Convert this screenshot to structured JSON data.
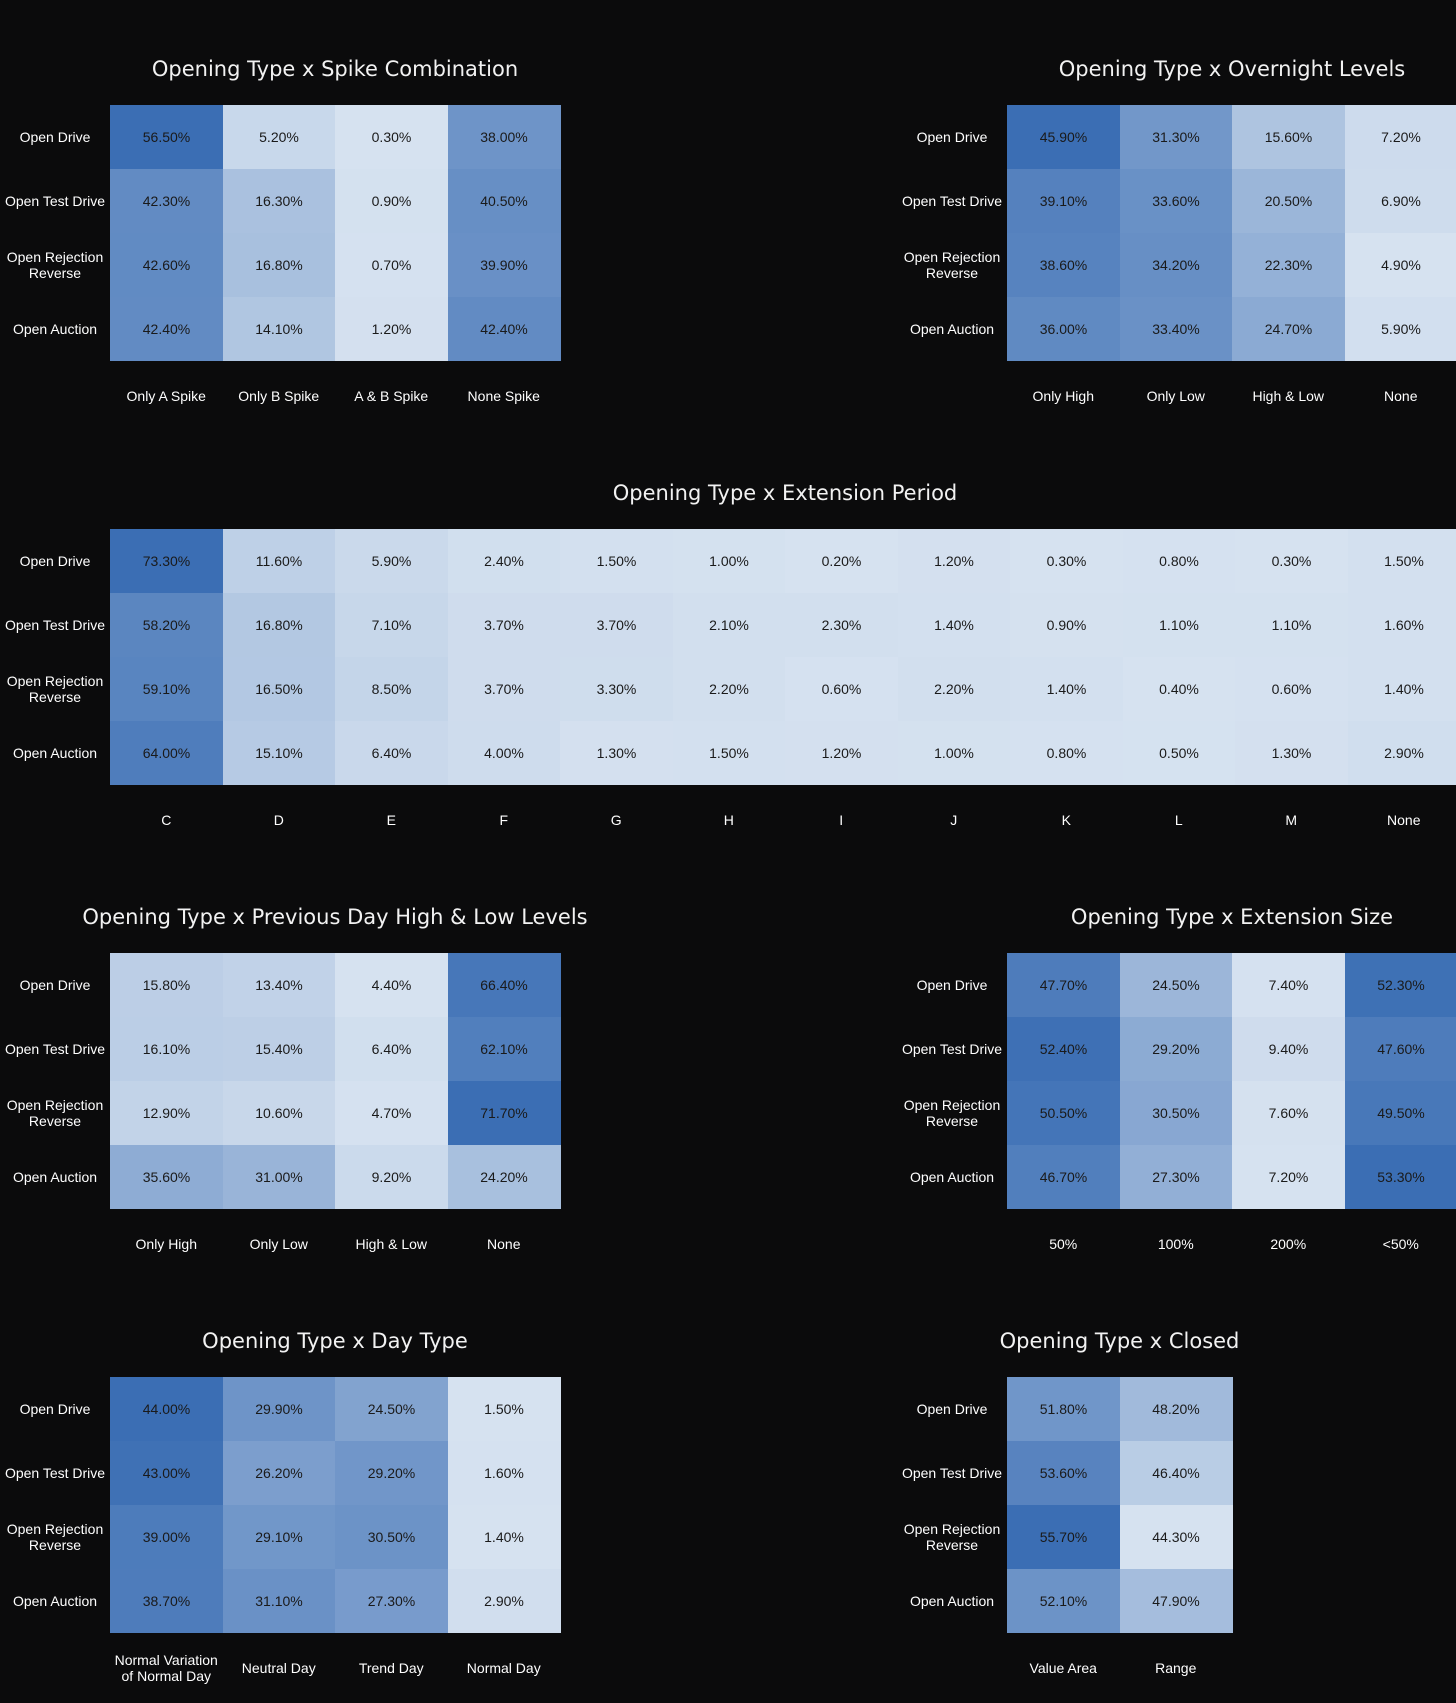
{
  "chart_data": [
    {
      "type": "heatmap",
      "title": "Opening Type x Spike Combination",
      "rows": [
        "Open Drive",
        "Open Test Drive",
        "Open Rejection Reverse",
        "Open Auction"
      ],
      "columns": [
        "Only A Spike",
        "Only B Spike",
        "A & B Spike",
        "None Spike"
      ],
      "values": [
        [
          56.5,
          5.2,
          0.3,
          38.0
        ],
        [
          42.3,
          16.3,
          0.9,
          40.5
        ],
        [
          42.6,
          16.8,
          0.7,
          39.9
        ],
        [
          42.4,
          14.1,
          1.2,
          42.4
        ]
      ],
      "labels": [
        [
          "56.50%",
          "5.20%",
          "0.30%",
          "38.00%"
        ],
        [
          "42.30%",
          "16.30%",
          "0.90%",
          "40.50%"
        ],
        [
          "42.60%",
          "16.80%",
          "0.70%",
          "39.90%"
        ],
        [
          "42.40%",
          "14.10%",
          "1.20%",
          "42.40%"
        ]
      ]
    },
    {
      "type": "heatmap",
      "title": "Opening Type x Overnight Levels",
      "rows": [
        "Open Drive",
        "Open Test Drive",
        "Open Rejection Reverse",
        "Open Auction"
      ],
      "columns": [
        "Only High",
        "Only Low",
        "High & Low",
        "None"
      ],
      "values": [
        [
          45.9,
          31.3,
          15.6,
          7.2
        ],
        [
          39.1,
          33.6,
          20.5,
          6.9
        ],
        [
          38.6,
          34.2,
          22.3,
          4.9
        ],
        [
          36.0,
          33.4,
          24.7,
          5.9
        ]
      ],
      "labels": [
        [
          "45.90%",
          "31.30%",
          "15.60%",
          "7.20%"
        ],
        [
          "39.10%",
          "33.60%",
          "20.50%",
          "6.90%"
        ],
        [
          "38.60%",
          "34.20%",
          "22.30%",
          "4.90%"
        ],
        [
          "36.00%",
          "33.40%",
          "24.70%",
          "5.90%"
        ]
      ]
    },
    {
      "type": "heatmap",
      "title": "Opening Type x Extension Period",
      "rows": [
        "Open Drive",
        "Open Test Drive",
        "Open Rejection Reverse",
        "Open Auction"
      ],
      "columns": [
        "C",
        "D",
        "E",
        "F",
        "G",
        "H",
        "I",
        "J",
        "K",
        "L",
        "M",
        "None"
      ],
      "values": [
        [
          73.3,
          11.6,
          5.9,
          2.4,
          1.5,
          1.0,
          0.2,
          1.2,
          0.3,
          0.8,
          0.3,
          1.5
        ],
        [
          58.2,
          16.8,
          7.1,
          3.7,
          3.7,
          2.1,
          2.3,
          1.4,
          0.9,
          1.1,
          1.1,
          1.6
        ],
        [
          59.1,
          16.5,
          8.5,
          3.7,
          3.3,
          2.2,
          0.6,
          2.2,
          1.4,
          0.4,
          0.6,
          1.4
        ],
        [
          64.0,
          15.1,
          6.4,
          4.0,
          1.3,
          1.5,
          1.2,
          1.0,
          0.8,
          0.5,
          1.3,
          2.9
        ]
      ],
      "labels": [
        [
          "73.30%",
          "11.60%",
          "5.90%",
          "2.40%",
          "1.50%",
          "1.00%",
          "0.20%",
          "1.20%",
          "0.30%",
          "0.80%",
          "0.30%",
          "1.50%"
        ],
        [
          "58.20%",
          "16.80%",
          "7.10%",
          "3.70%",
          "3.70%",
          "2.10%",
          "2.30%",
          "1.40%",
          "0.90%",
          "1.10%",
          "1.10%",
          "1.60%"
        ],
        [
          "59.10%",
          "16.50%",
          "8.50%",
          "3.70%",
          "3.30%",
          "2.20%",
          "0.60%",
          "2.20%",
          "1.40%",
          "0.40%",
          "0.60%",
          "1.40%"
        ],
        [
          "64.00%",
          "15.10%",
          "6.40%",
          "4.00%",
          "1.30%",
          "1.50%",
          "1.20%",
          "1.00%",
          "0.80%",
          "0.50%",
          "1.30%",
          "2.90%"
        ]
      ]
    },
    {
      "type": "heatmap",
      "title": "Opening Type x Previous Day High & Low Levels",
      "rows": [
        "Open Drive",
        "Open Test Drive",
        "Open Rejection Reverse",
        "Open Auction"
      ],
      "columns": [
        "Only High",
        "Only Low",
        "High & Low",
        "None"
      ],
      "values": [
        [
          15.8,
          13.4,
          4.4,
          66.4
        ],
        [
          16.1,
          15.4,
          6.4,
          62.1
        ],
        [
          12.9,
          10.6,
          4.7,
          71.7
        ],
        [
          35.6,
          31.0,
          9.2,
          24.2
        ]
      ],
      "labels": [
        [
          "15.80%",
          "13.40%",
          "4.40%",
          "66.40%"
        ],
        [
          "16.10%",
          "15.40%",
          "6.40%",
          "62.10%"
        ],
        [
          "12.90%",
          "10.60%",
          "4.70%",
          "71.70%"
        ],
        [
          "35.60%",
          "31.00%",
          "9.20%",
          "24.20%"
        ]
      ]
    },
    {
      "type": "heatmap",
      "title": "Opening Type x Extension Size",
      "rows": [
        "Open Drive",
        "Open Test Drive",
        "Open Rejection Reverse",
        "Open Auction"
      ],
      "columns": [
        "50%",
        "100%",
        "200%",
        "<50%"
      ],
      "values": [
        [
          47.7,
          24.5,
          7.4,
          52.3
        ],
        [
          52.4,
          29.2,
          9.4,
          47.6
        ],
        [
          50.5,
          30.5,
          7.6,
          49.5
        ],
        [
          46.7,
          27.3,
          7.2,
          53.3
        ]
      ],
      "labels": [
        [
          "47.70%",
          "24.50%",
          "7.40%",
          "52.30%"
        ],
        [
          "52.40%",
          "29.20%",
          "9.40%",
          "47.60%"
        ],
        [
          "50.50%",
          "30.50%",
          "7.60%",
          "49.50%"
        ],
        [
          "46.70%",
          "27.30%",
          "7.20%",
          "53.30%"
        ]
      ]
    },
    {
      "type": "heatmap",
      "title": "Opening Type x Day Type",
      "rows": [
        "Open Drive",
        "Open Test Drive",
        "Open Rejection Reverse",
        "Open Auction"
      ],
      "columns": [
        "Normal Variation of Normal Day",
        "Neutral Day",
        "Trend Day",
        "Normal Day"
      ],
      "values": [
        [
          44.0,
          29.9,
          24.5,
          1.5
        ],
        [
          43.0,
          26.2,
          29.2,
          1.6
        ],
        [
          39.0,
          29.1,
          30.5,
          1.4
        ],
        [
          38.7,
          31.1,
          27.3,
          2.9
        ]
      ],
      "labels": [
        [
          "44.00%",
          "29.90%",
          "24.50%",
          "1.50%"
        ],
        [
          "43.00%",
          "26.20%",
          "29.20%",
          "1.60%"
        ],
        [
          "39.00%",
          "29.10%",
          "30.50%",
          "1.40%"
        ],
        [
          "38.70%",
          "31.10%",
          "27.30%",
          "2.90%"
        ]
      ]
    },
    {
      "type": "heatmap",
      "title": "Opening Type x Closed",
      "rows": [
        "Open Drive",
        "Open Test Drive",
        "Open Rejection Reverse",
        "Open Auction"
      ],
      "columns": [
        "Value Area",
        "Range"
      ],
      "values": [
        [
          51.8,
          48.2
        ],
        [
          53.6,
          46.4
        ],
        [
          55.7,
          44.3
        ],
        [
          52.1,
          47.9
        ]
      ],
      "labels": [
        [
          "51.80%",
          "48.20%"
        ],
        [
          "53.60%",
          "46.40%"
        ],
        [
          "55.70%",
          "44.30%"
        ],
        [
          "52.10%",
          "47.90%"
        ]
      ]
    }
  ]
}
